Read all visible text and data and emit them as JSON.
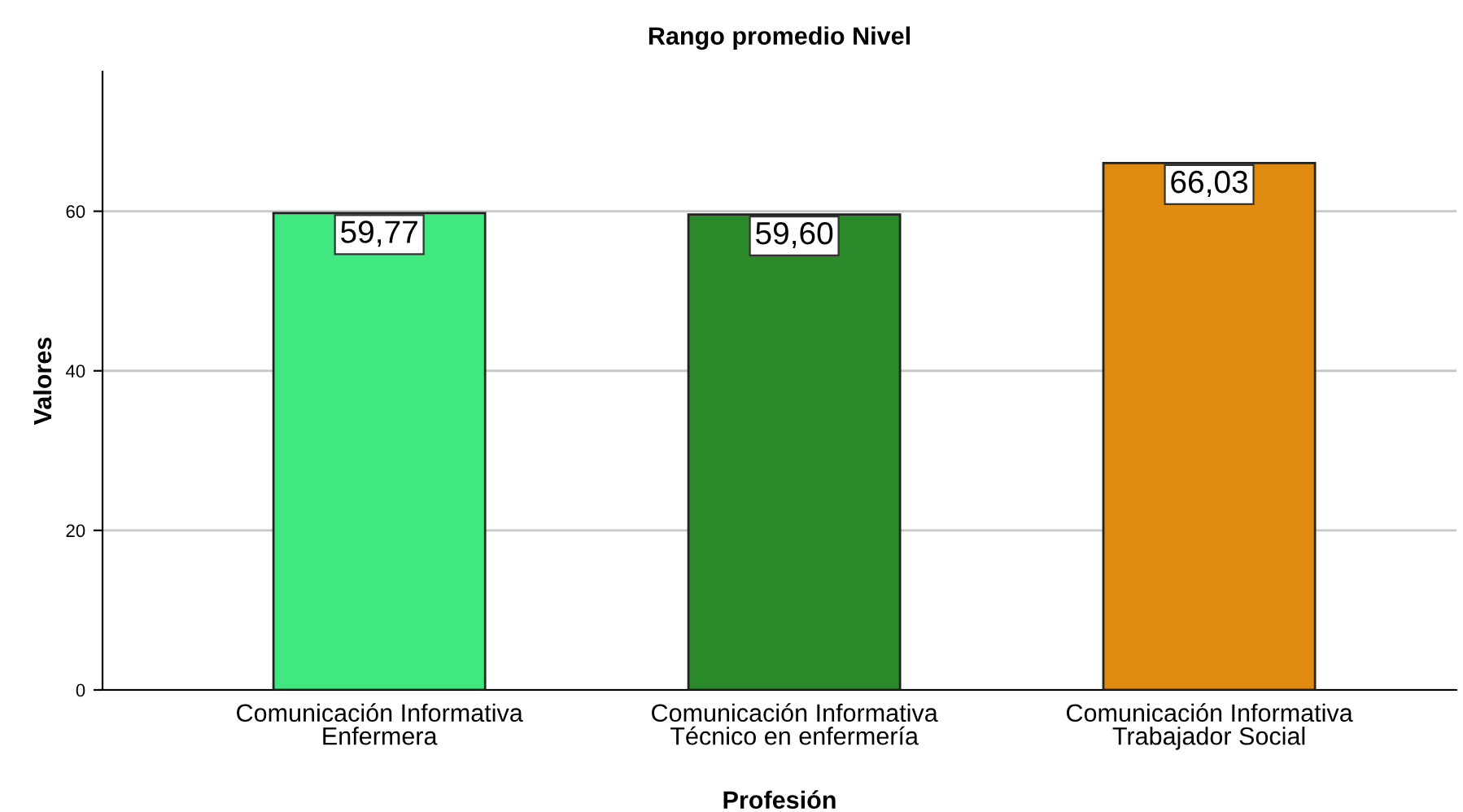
{
  "chart_data": {
    "type": "bar",
    "title": "Rango promedio Nivel",
    "xlabel": "Profesión",
    "ylabel": "Valores",
    "categories": [
      "Comunicación Informativa\nEnfermera",
      "Comunicación Informativa\nTécnico en enfermería",
      "Comunicación Informativa\nTrabajador Social"
    ],
    "values": [
      59.77,
      59.6,
      66.03
    ],
    "colors": [
      "#41e87f",
      "#2a8a2a",
      "#e08a12"
    ],
    "value_labels": [
      "59,77",
      "59,60",
      "66,03"
    ],
    "ylim": [
      0,
      77.5
    ],
    "yticks": [
      0,
      20,
      40,
      60
    ],
    "grid": "y"
  }
}
